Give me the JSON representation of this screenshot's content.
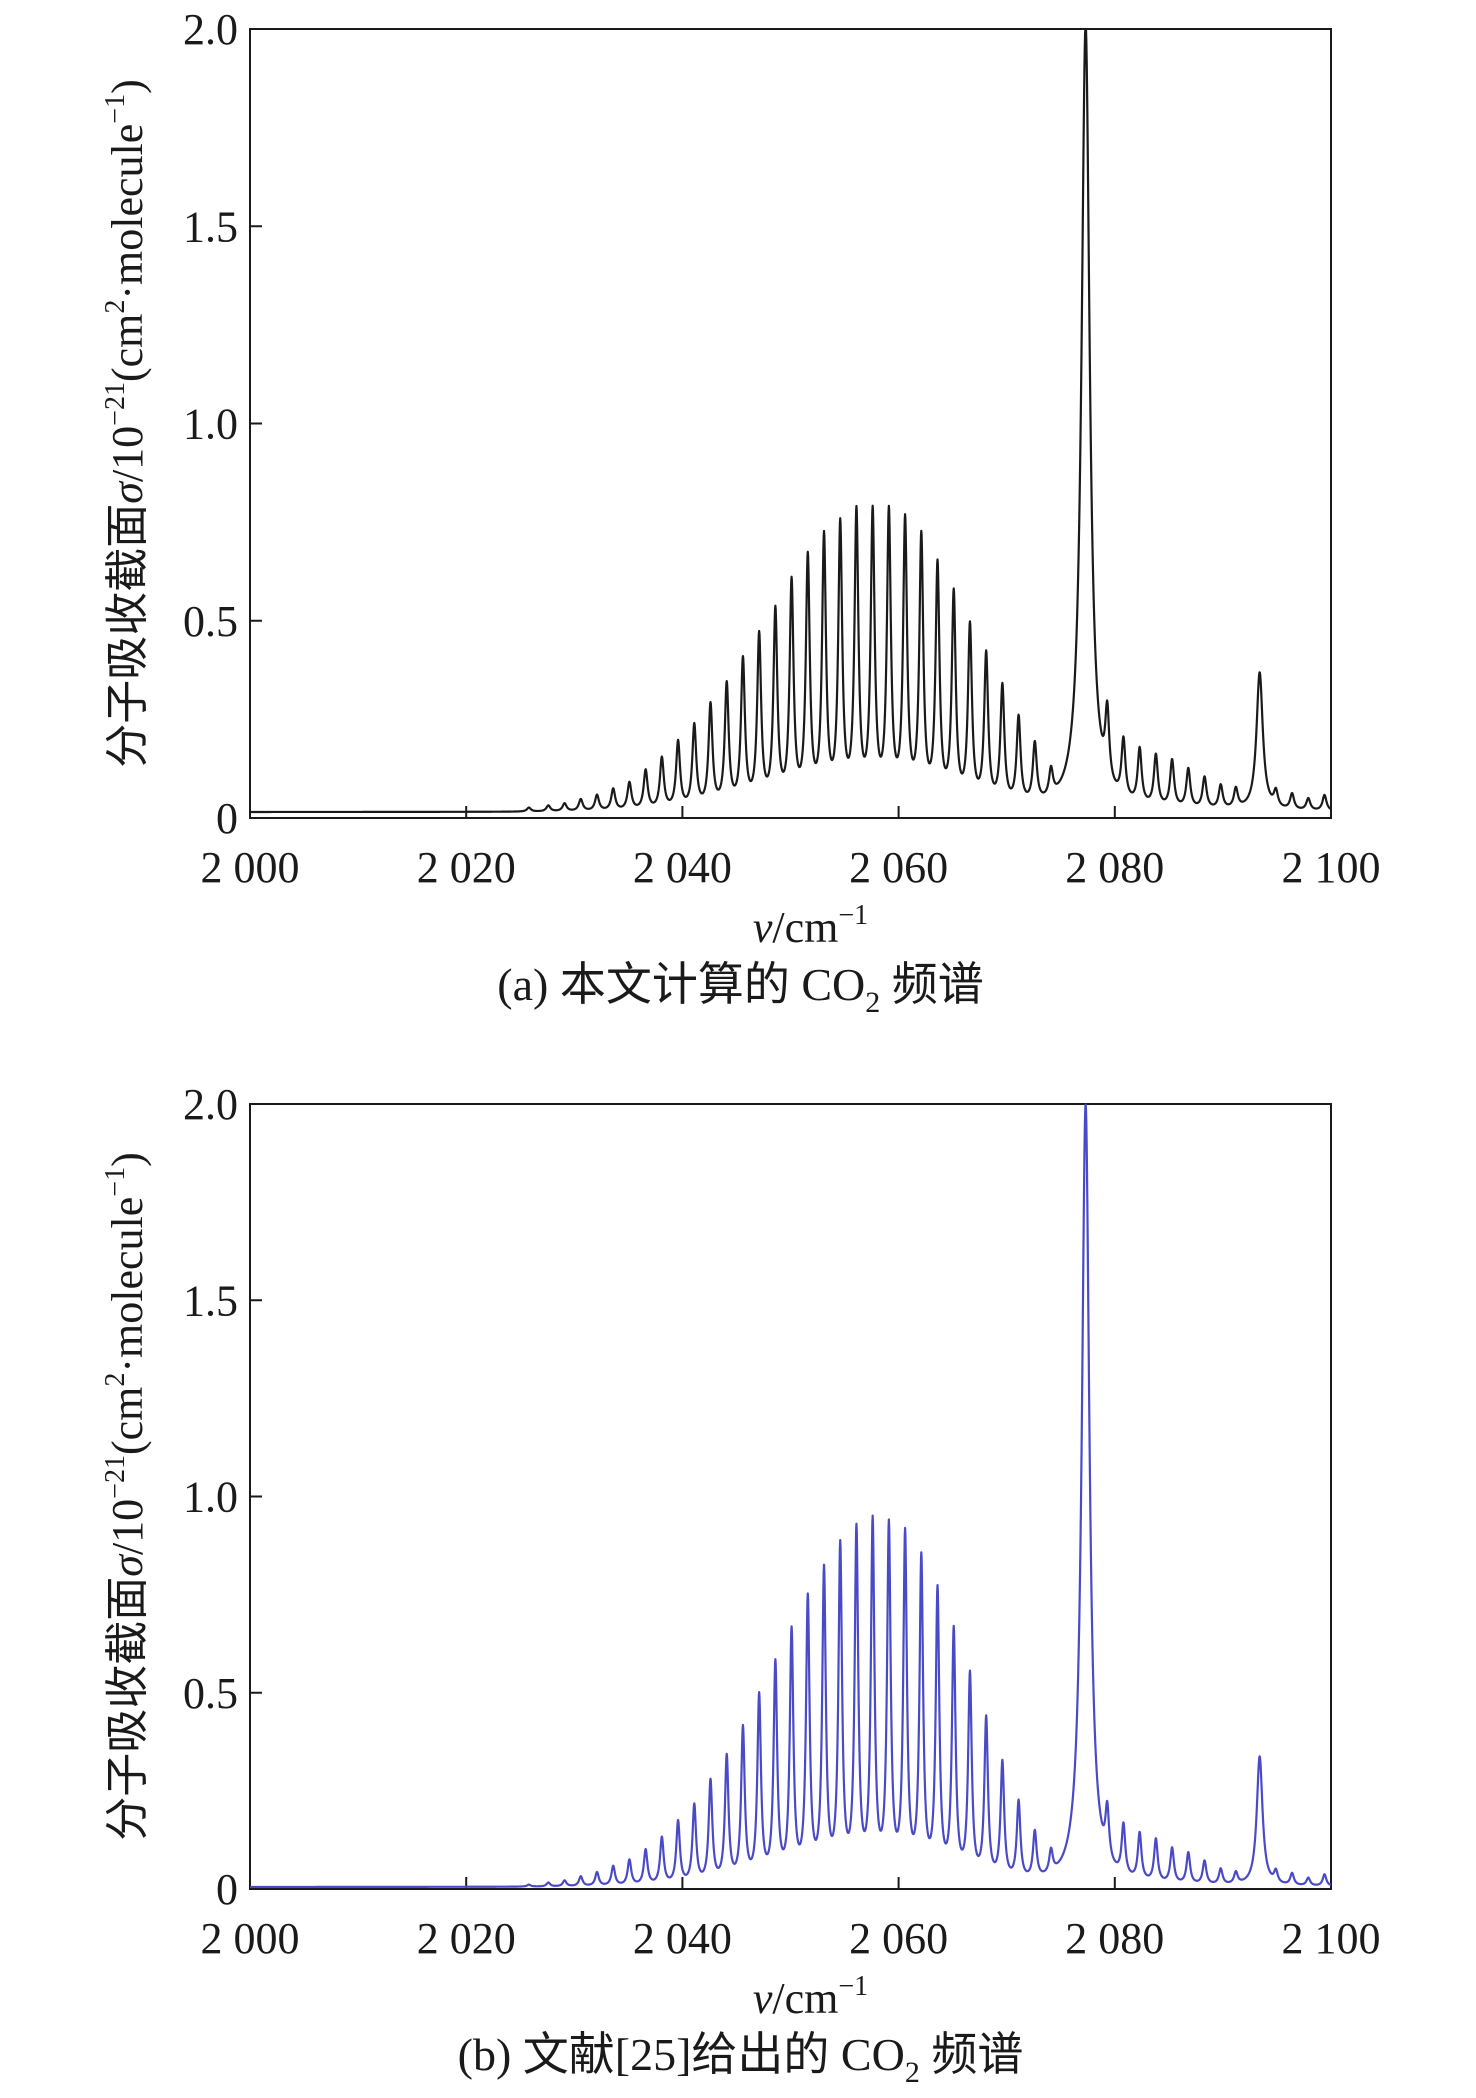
{
  "chart_data": [
    {
      "type": "line",
      "caption": {
        "pre": "(a) 本文计算的 CO",
        "sub": "2",
        "post": " 频谱"
      },
      "xlabel": {
        "sym": "ν",
        "unit": "/cm",
        "sup": "−1"
      },
      "ylabel": {
        "text": "分子吸收截面σ/10",
        "sup1": "−21",
        "mid": "(cm",
        "sup2": "2",
        "mid2": "·molecule",
        "sup3": "−1",
        "end": ")"
      },
      "xlim": [
        2000,
        2100
      ],
      "ylim": [
        0,
        2.0
      ],
      "x_ticks": [
        2000,
        2020,
        2040,
        2060,
        2080,
        2100
      ],
      "x_tick_labels": [
        "2 000",
        "2 020",
        "2 040",
        "2 060",
        "2 080",
        "2 100"
      ],
      "y_ticks": [
        0,
        0.5,
        1.0,
        1.5,
        2.0
      ],
      "y_tick_labels": [
        "0",
        "0.5",
        "1.0",
        "1.5",
        "2.0"
      ],
      "grid": false,
      "line_color": "#1a1a1a",
      "baseline": 0.015,
      "series": [
        {
          "peaks_x": [
            2025.8,
            2027.6,
            2029.1,
            2030.6,
            2032.1,
            2033.6,
            2035.1,
            2036.6,
            2038.1,
            2039.6,
            2041.1,
            2042.6,
            2044.1,
            2045.6,
            2047.1,
            2048.6,
            2050.1,
            2051.6,
            2053.1,
            2054.6,
            2056.1,
            2057.6,
            2059.1,
            2060.6,
            2062.1,
            2063.6,
            2065.1,
            2066.6,
            2068.1,
            2069.6,
            2071.1,
            2072.6,
            2074.1,
            2077.3,
            2079.3,
            2080.8,
            2082.3,
            2083.8,
            2085.3,
            2086.8,
            2088.3,
            2089.8,
            2091.2,
            2093.4,
            2094.9,
            2096.4,
            2097.9,
            2099.4
          ],
          "peaks_y": [
            0.01,
            0.015,
            0.02,
            0.03,
            0.04,
            0.055,
            0.07,
            0.1,
            0.13,
            0.17,
            0.21,
            0.26,
            0.31,
            0.37,
            0.43,
            0.49,
            0.56,
            0.62,
            0.67,
            0.7,
            0.73,
            0.73,
            0.73,
            0.71,
            0.67,
            0.6,
            0.53,
            0.45,
            0.38,
            0.3,
            0.22,
            0.15,
            0.07,
            1.99,
            0.18,
            0.15,
            0.14,
            0.13,
            0.12,
            0.1,
            0.08,
            0.06,
            0.05,
            0.35,
            0.04,
            0.04,
            0.03,
            0.04
          ],
          "widths": [
            0.22,
            0.22,
            0.22,
            0.22,
            0.22,
            0.22,
            0.22,
            0.22,
            0.22,
            0.22,
            0.22,
            0.22,
            0.22,
            0.22,
            0.22,
            0.22,
            0.22,
            0.22,
            0.22,
            0.22,
            0.22,
            0.22,
            0.22,
            0.22,
            0.22,
            0.22,
            0.22,
            0.22,
            0.22,
            0.22,
            0.22,
            0.22,
            0.22,
            0.45,
            0.22,
            0.22,
            0.22,
            0.22,
            0.22,
            0.22,
            0.22,
            0.22,
            0.22,
            0.35,
            0.22,
            0.22,
            0.22,
            0.22
          ]
        }
      ]
    },
    {
      "type": "line",
      "caption": {
        "pre": "(b) 文献[25]给出的 CO",
        "sub": "2",
        "post": " 频谱"
      },
      "xlabel": {
        "sym": "ν",
        "unit": "/cm",
        "sup": "−1"
      },
      "ylabel": {
        "text": "分子吸收截面σ/10",
        "sup1": "−21",
        "mid": "(cm",
        "sup2": "2",
        "mid2": "·molecule",
        "sup3": "−1",
        "end": ")"
      },
      "xlim": [
        2000,
        2100
      ],
      "ylim": [
        0,
        2.0
      ],
      "x_ticks": [
        2000,
        2020,
        2040,
        2060,
        2080,
        2100
      ],
      "x_tick_labels": [
        "2 000",
        "2 020",
        "2 040",
        "2 060",
        "2 080",
        "2 100"
      ],
      "y_ticks": [
        0,
        0.5,
        1.0,
        1.5,
        2.0
      ],
      "y_tick_labels": [
        "0",
        "0.5",
        "1.0",
        "1.5",
        "2.0"
      ],
      "grid": false,
      "line_color": "#4a4ac8",
      "baseline": 0.005,
      "series": [
        {
          "peaks_x": [
            2025.8,
            2027.6,
            2029.1,
            2030.6,
            2032.1,
            2033.6,
            2035.1,
            2036.6,
            2038.1,
            2039.6,
            2041.1,
            2042.6,
            2044.1,
            2045.6,
            2047.1,
            2048.6,
            2050.1,
            2051.6,
            2053.1,
            2054.6,
            2056.1,
            2057.6,
            2059.1,
            2060.6,
            2062.1,
            2063.6,
            2065.1,
            2066.6,
            2068.1,
            2069.6,
            2071.1,
            2072.6,
            2074.1,
            2077.3,
            2079.3,
            2080.8,
            2082.3,
            2083.8,
            2085.3,
            2086.8,
            2088.3,
            2089.8,
            2091.2,
            2093.4,
            2094.9,
            2096.4,
            2097.9,
            2099.4
          ],
          "peaks_y": [
            0.005,
            0.01,
            0.015,
            0.025,
            0.035,
            0.05,
            0.065,
            0.09,
            0.12,
            0.16,
            0.2,
            0.26,
            0.32,
            0.39,
            0.47,
            0.55,
            0.63,
            0.71,
            0.78,
            0.84,
            0.88,
            0.9,
            0.89,
            0.87,
            0.81,
            0.73,
            0.63,
            0.52,
            0.41,
            0.3,
            0.2,
            0.12,
            0.06,
            1.99,
            0.13,
            0.13,
            0.12,
            0.11,
            0.09,
            0.08,
            0.06,
            0.04,
            0.03,
            0.33,
            0.03,
            0.03,
            0.02,
            0.03
          ],
          "widths": [
            0.2,
            0.2,
            0.2,
            0.2,
            0.2,
            0.2,
            0.2,
            0.2,
            0.2,
            0.2,
            0.2,
            0.2,
            0.2,
            0.2,
            0.2,
            0.2,
            0.2,
            0.2,
            0.2,
            0.2,
            0.2,
            0.2,
            0.2,
            0.2,
            0.2,
            0.2,
            0.2,
            0.2,
            0.2,
            0.2,
            0.2,
            0.2,
            0.2,
            0.42,
            0.2,
            0.2,
            0.2,
            0.2,
            0.2,
            0.2,
            0.2,
            0.2,
            0.2,
            0.32,
            0.2,
            0.2,
            0.2,
            0.2
          ]
        }
      ]
    }
  ]
}
